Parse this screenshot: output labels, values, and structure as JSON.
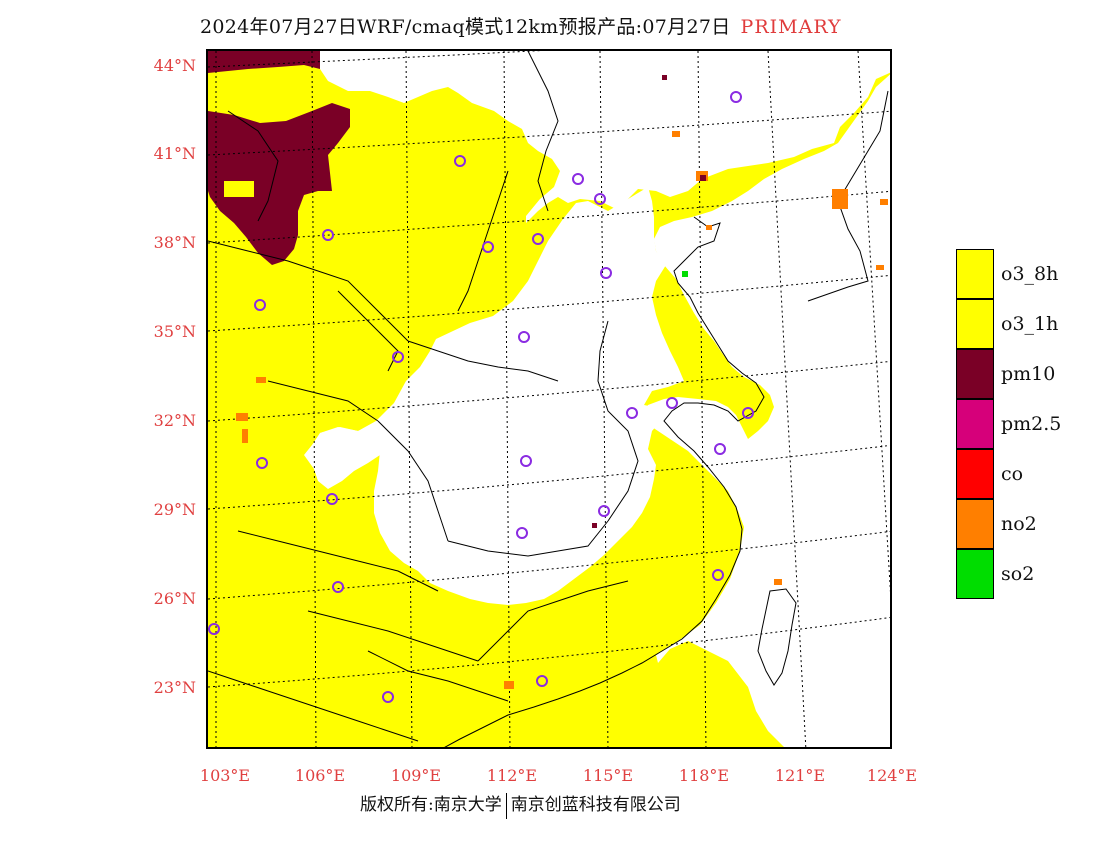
{
  "title": {
    "main": "2024年07月27日WRF/cmaq模式12km预报产品:07月27日",
    "tag": "PRIMARY"
  },
  "map": {
    "lat_labels": [
      "44°N",
      "41°N",
      "38°N",
      "35°N",
      "32°N",
      "29°N",
      "26°N",
      "23°N"
    ],
    "lon_labels": [
      "103°E",
      "106°E",
      "109°E",
      "112°E",
      "115°E",
      "118°E",
      "121°E",
      "124°E"
    ],
    "colors": {
      "land_default": "#ffff00",
      "clean": "#ffffff",
      "pm10": "#7a0026",
      "no2": "#ff7f00",
      "so2": "#00dd00",
      "station": "#8a2be2"
    }
  },
  "legend": {
    "items": [
      {
        "label": "o3_8h",
        "color": "#ffff00"
      },
      {
        "label": "o3_1h",
        "color": "#ffff00"
      },
      {
        "label": "pm10",
        "color": "#7a0026"
      },
      {
        "label": "pm2.5",
        "color": "#d6007a"
      },
      {
        "label": "co",
        "color": "#ff0000"
      },
      {
        "label": "no2",
        "color": "#ff7f00"
      },
      {
        "label": "so2",
        "color": "#00dd00"
      }
    ]
  },
  "footer": {
    "left": "版权所有:南京大学",
    "right": "南京创蓝科技有限公司"
  }
}
